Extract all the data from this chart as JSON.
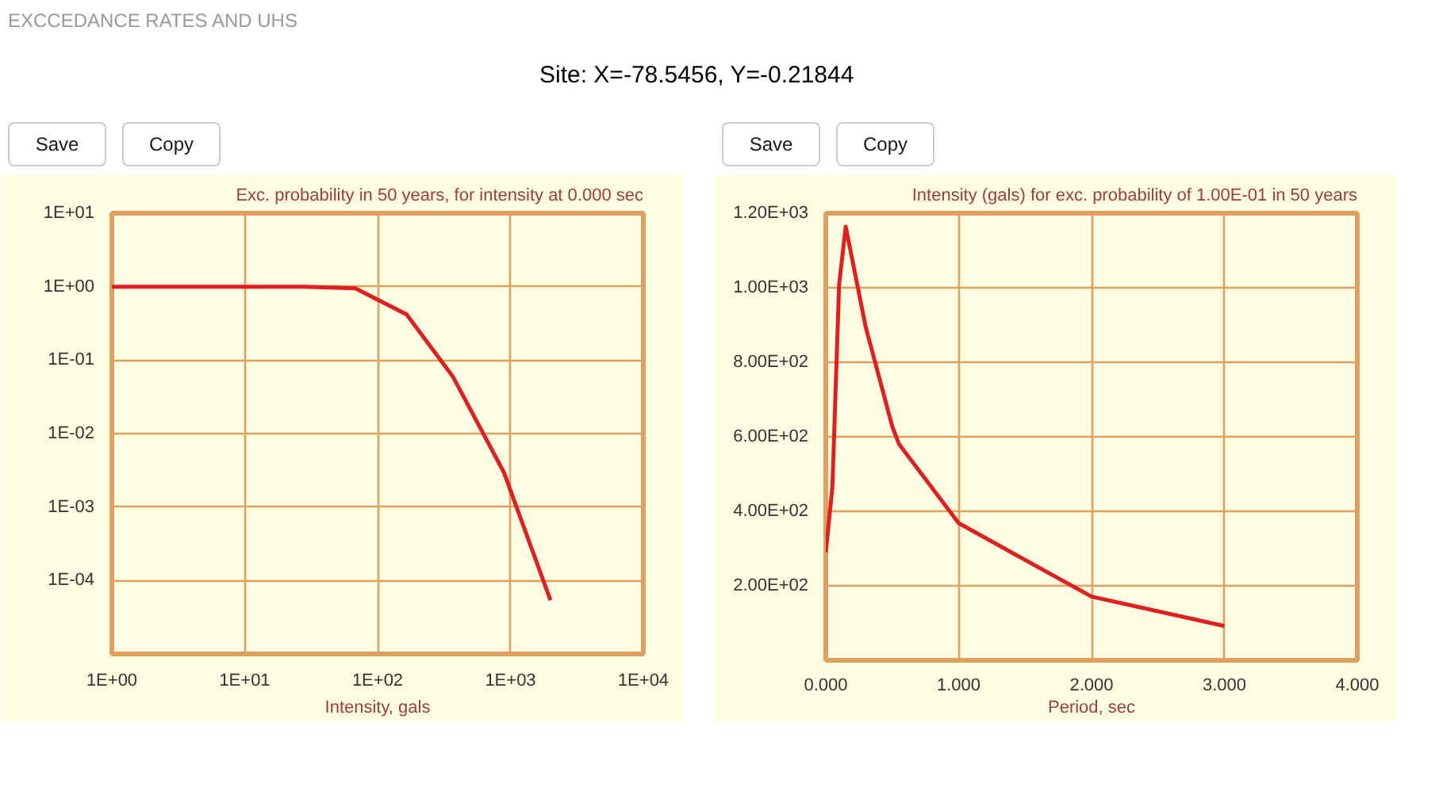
{
  "chart_data": [
    {
      "type": "line",
      "title": "Exc. probability in 50 years, for intensity at 0.000 sec",
      "xlabel": "Intensity, gals",
      "log": "xy",
      "grid": true,
      "marker": "none",
      "line_style": "solid",
      "annotations": [
        "EXCCEDANCE RATES AND UHS",
        "Site: X=-78.5456, Y=-0.21844",
        "Save",
        "Copy"
      ],
      "x": [
        1,
        28,
        68,
        165,
        370,
        890,
        2000
      ],
      "series": [
        {
          "color": "#e02020",
          "values": [
            1,
            1,
            0.95,
            0.42,
            0.059,
            0.003,
            5.4e-05
          ]
        }
      ],
      "xlim": [
        1,
        10000
      ],
      "ylim": [
        1e-05,
        10
      ],
      "xticks": [
        {
          "value": 1,
          "label": "1E+00"
        },
        {
          "value": 10,
          "label": "1E+01"
        },
        {
          "value": 100,
          "label": "1E+02"
        },
        {
          "value": 1000,
          "label": "1E+03"
        },
        {
          "value": 10000,
          "label": "1E+04"
        }
      ],
      "yticks": [
        {
          "value": 0.0001,
          "label": "1E-04"
        },
        {
          "value": 0.001,
          "label": "1E-03"
        },
        {
          "value": 0.01,
          "label": "1E-02"
        },
        {
          "value": 0.1,
          "label": "1E-01"
        },
        {
          "value": 1,
          "label": "1E+00"
        },
        {
          "value": 10,
          "label": "1E+01"
        }
      ]
    },
    {
      "type": "line",
      "title": "Intensity (gals) for exc. probability of 1.00E-01 in 50 years",
      "xlabel": "Period, sec",
      "grid": true,
      "marker": "none",
      "line_style": "solid",
      "annotations": [
        "Save",
        "Copy"
      ],
      "x": [
        0,
        0.05,
        0.1,
        0.15,
        0.3,
        0.5,
        0.55,
        1.0,
        2.0,
        3.0
      ],
      "series": [
        {
          "color": "#e02020",
          "values": [
            290,
            467,
            1008,
            1164,
            895,
            628,
            581,
            368,
            171,
            92
          ]
        }
      ],
      "xlim": [
        0,
        4
      ],
      "ylim": [
        0,
        1200
      ],
      "xticks": [
        {
          "value": 0,
          "label": "0.000"
        },
        {
          "value": 1,
          "label": "1.000"
        },
        {
          "value": 2,
          "label": "2.000"
        },
        {
          "value": 3,
          "label": "3.000"
        },
        {
          "value": 4,
          "label": "4.000"
        }
      ],
      "yticks": [
        {
          "value": 200,
          "label": "2.00E+02"
        },
        {
          "value": 400,
          "label": "4.00E+02"
        },
        {
          "value": 600,
          "label": "6.00E+02"
        },
        {
          "value": 800,
          "label": "8.00E+02"
        },
        {
          "value": 1000,
          "label": "1.00E+03"
        },
        {
          "value": 1200,
          "label": "1.20E+03"
        }
      ]
    }
  ]
}
